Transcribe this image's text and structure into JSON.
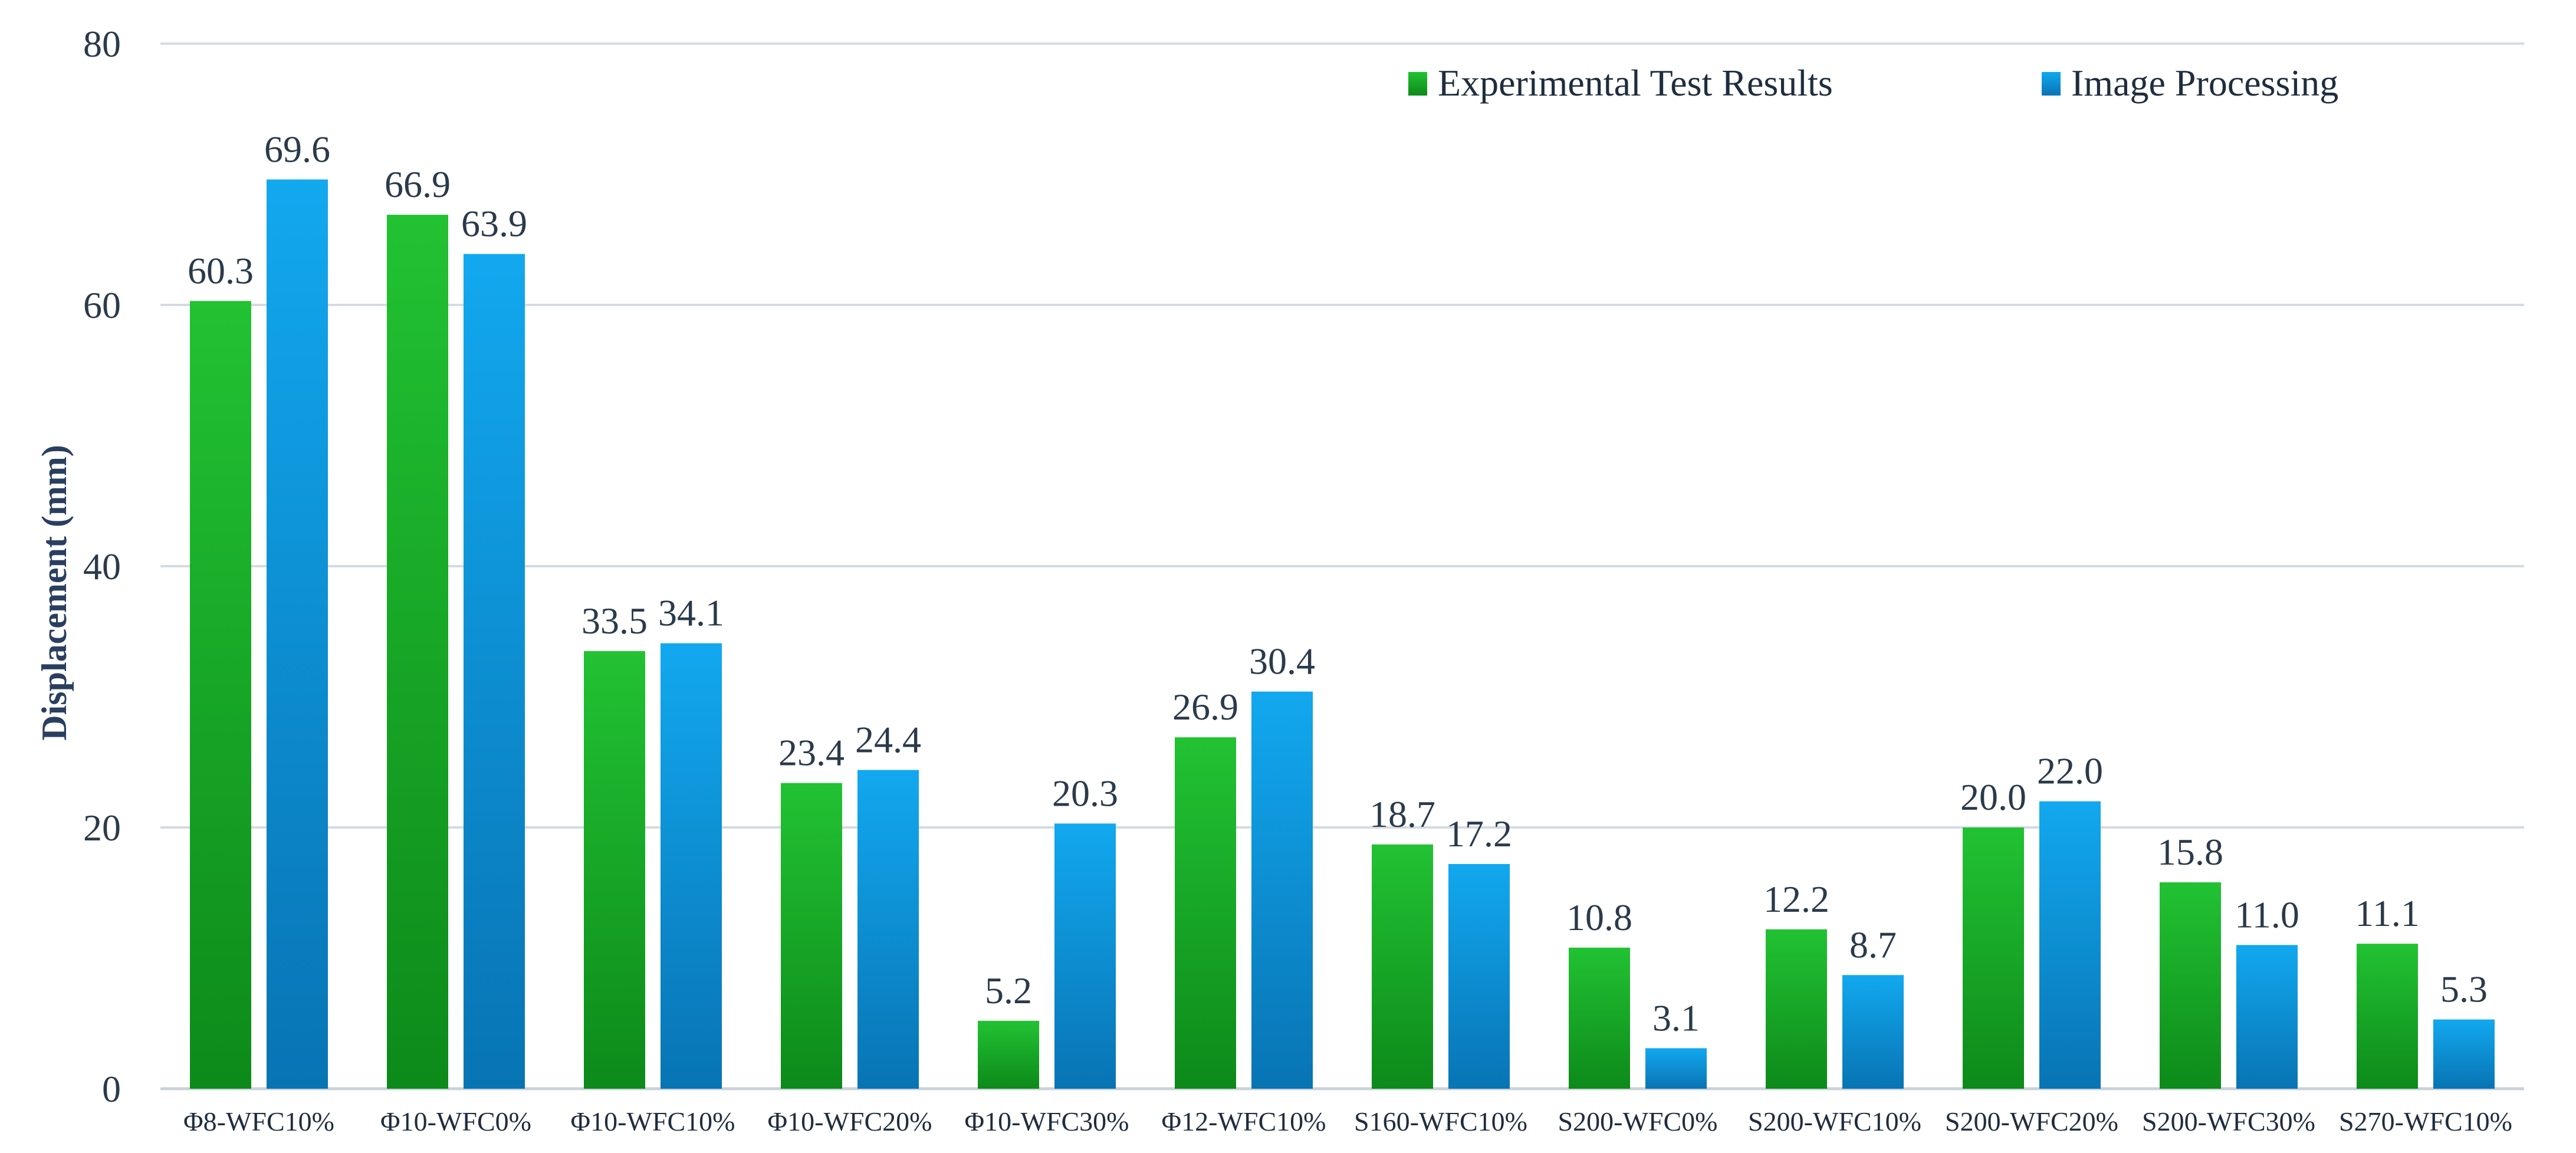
{
  "chart_data": {
    "type": "bar",
    "title": "",
    "xlabel": "",
    "ylabel": "Displacement (mm)",
    "ylim": [
      0,
      80
    ],
    "yticks": [
      0,
      20,
      40,
      60,
      80
    ],
    "grid": true,
    "legend_position": "top-right",
    "categories": [
      "Φ8-WFC10%",
      "Φ10-WFC0%",
      "Φ10-WFC10%",
      "Φ10-WFC20%",
      "Φ10-WFC30%",
      "Φ12-WFC10%",
      "S160-WFC10%",
      "S200-WFC0%",
      "S200-WFC10%",
      "S200-WFC20%",
      "S200-WFC30%",
      "S270-WFC10%"
    ],
    "series": [
      {
        "name": "Experimental Test Results",
        "color": "#1db42b",
        "values": [
          60.3,
          66.9,
          33.5,
          23.4,
          5.2,
          26.9,
          18.7,
          10.8,
          12.2,
          20.0,
          15.8,
          11.1
        ],
        "labels": [
          "60.3",
          "66.9",
          "33.5",
          "23.4",
          "5.2",
          "26.9",
          "18.7",
          "10.8",
          "12.2",
          "20.0",
          "15.8",
          "11.1"
        ]
      },
      {
        "name": "Image Processing",
        "color": "#0a9be6",
        "values": [
          69.6,
          63.9,
          34.1,
          24.4,
          20.3,
          30.4,
          17.2,
          3.1,
          8.7,
          22.0,
          11.0,
          5.3
        ],
        "labels": [
          "69.6",
          "63.9",
          "34.1",
          "24.4",
          "20.3",
          "30.4",
          "17.2",
          "3.1",
          "8.7",
          "22.0",
          "11.0",
          "5.3"
        ]
      }
    ]
  }
}
